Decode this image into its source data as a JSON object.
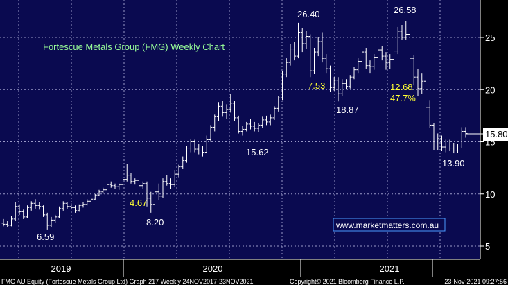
{
  "chart_data": {
    "type": "ohlc",
    "title": "Fortescue Metals Group (FMG) Weekly Chart",
    "watermark": "www.marketmatters.com.au",
    "last_price": "15.80",
    "ylim": [
      5,
      28
    ],
    "y_ticks": [
      "5",
      "10",
      "15",
      "20",
      "25"
    ],
    "x_periods": [
      "2019",
      "2020",
      "2021"
    ],
    "colors": {
      "background": "#0a0a50",
      "grid": "#9a9ac8",
      "bars": "#ffffff",
      "title": "#99ff99",
      "yellow": "#ffff33",
      "watermark_border": "#4a9aff",
      "last_price_box": "#ffffff"
    },
    "annotations": [
      {
        "text": "6.59",
        "color": "white"
      },
      {
        "text": "4.67",
        "color": "yellow"
      },
      {
        "text": "8.20",
        "color": "white"
      },
      {
        "text": "15.62",
        "color": "white"
      },
      {
        "text": "26.40",
        "color": "white"
      },
      {
        "text": "7.53",
        "color": "yellow"
      },
      {
        "text": "18.87",
        "color": "white"
      },
      {
        "text": "26.58",
        "color": "white"
      },
      {
        "text": "12.68",
        "color": "yellow"
      },
      {
        "text": "47.7%",
        "color": "yellow"
      },
      {
        "text": "13.90",
        "color": "white"
      }
    ],
    "footer_left": "FMG AU Equity (Fortescue Metals Group Ltd) Graph 217  Weekly 24NOV2017-23NOV2021",
    "footer_center": "Copyright© 2021 Bloomberg Finance L.P.",
    "footer_right": "23-Nov-2021 09:27:56",
    "series": [
      {
        "o": 7.2,
        "h": 7.6,
        "l": 6.9,
        "c": 7.1
      },
      {
        "o": 7.1,
        "h": 7.4,
        "l": 6.8,
        "c": 7.0
      },
      {
        "o": 7.0,
        "h": 7.9,
        "l": 6.9,
        "c": 7.6
      },
      {
        "o": 7.6,
        "h": 9.2,
        "l": 7.4,
        "c": 8.8
      },
      {
        "o": 8.8,
        "h": 9.0,
        "l": 8.0,
        "c": 8.3
      },
      {
        "o": 8.3,
        "h": 8.5,
        "l": 7.6,
        "c": 7.8
      },
      {
        "o": 7.8,
        "h": 8.9,
        "l": 7.7,
        "c": 8.7
      },
      {
        "o": 8.7,
        "h": 9.3,
        "l": 8.4,
        "c": 9.1
      },
      {
        "o": 9.1,
        "h": 9.5,
        "l": 8.6,
        "c": 8.9
      },
      {
        "o": 8.9,
        "h": 9.2,
        "l": 8.5,
        "c": 8.8
      },
      {
        "o": 8.8,
        "h": 8.9,
        "l": 7.8,
        "c": 8.0
      },
      {
        "o": 8.0,
        "h": 8.2,
        "l": 6.6,
        "c": 7.0
      },
      {
        "o": 7.0,
        "h": 7.8,
        "l": 6.8,
        "c": 7.5
      },
      {
        "o": 7.5,
        "h": 8.0,
        "l": 7.2,
        "c": 7.8
      },
      {
        "o": 7.8,
        "h": 8.8,
        "l": 7.7,
        "c": 8.6
      },
      {
        "o": 8.6,
        "h": 9.3,
        "l": 8.4,
        "c": 9.1
      },
      {
        "o": 9.1,
        "h": 9.2,
        "l": 8.6,
        "c": 8.8
      },
      {
        "o": 8.8,
        "h": 9.1,
        "l": 8.5,
        "c": 8.7
      },
      {
        "o": 8.7,
        "h": 8.9,
        "l": 8.2,
        "c": 8.4
      },
      {
        "o": 8.4,
        "h": 9.0,
        "l": 8.3,
        "c": 8.9
      },
      {
        "o": 8.9,
        "h": 9.2,
        "l": 8.7,
        "c": 9.0
      },
      {
        "o": 9.0,
        "h": 9.5,
        "l": 8.9,
        "c": 9.3
      },
      {
        "o": 9.3,
        "h": 9.7,
        "l": 9.0,
        "c": 9.5
      },
      {
        "o": 9.5,
        "h": 10.0,
        "l": 9.4,
        "c": 9.9
      },
      {
        "o": 9.9,
        "h": 10.4,
        "l": 9.8,
        "c": 10.2
      },
      {
        "o": 10.2,
        "h": 10.6,
        "l": 10.0,
        "c": 10.4
      },
      {
        "o": 10.4,
        "h": 11.0,
        "l": 10.3,
        "c": 10.9
      },
      {
        "o": 10.9,
        "h": 11.2,
        "l": 10.6,
        "c": 10.8
      },
      {
        "o": 10.8,
        "h": 11.0,
        "l": 10.5,
        "c": 10.7
      },
      {
        "o": 10.7,
        "h": 11.0,
        "l": 10.4,
        "c": 10.9
      },
      {
        "o": 10.9,
        "h": 11.6,
        "l": 10.8,
        "c": 11.4
      },
      {
        "o": 11.4,
        "h": 12.9,
        "l": 11.2,
        "c": 11.8
      },
      {
        "o": 11.8,
        "h": 12.0,
        "l": 11.0,
        "c": 11.2
      },
      {
        "o": 11.2,
        "h": 11.5,
        "l": 10.9,
        "c": 11.3
      },
      {
        "o": 11.3,
        "h": 11.6,
        "l": 10.6,
        "c": 10.8
      },
      {
        "o": 10.8,
        "h": 11.2,
        "l": 10.5,
        "c": 11.0
      },
      {
        "o": 11.0,
        "h": 11.2,
        "l": 8.8,
        "c": 9.6
      },
      {
        "o": 9.6,
        "h": 10.2,
        "l": 8.2,
        "c": 9.0
      },
      {
        "o": 9.0,
        "h": 10.6,
        "l": 8.8,
        "c": 10.2
      },
      {
        "o": 10.2,
        "h": 11.0,
        "l": 9.4,
        "c": 9.8
      },
      {
        "o": 9.8,
        "h": 11.5,
        "l": 9.6,
        "c": 11.2
      },
      {
        "o": 11.2,
        "h": 11.8,
        "l": 10.8,
        "c": 11.0
      },
      {
        "o": 11.0,
        "h": 11.5,
        "l": 10.5,
        "c": 10.9
      },
      {
        "o": 10.9,
        "h": 12.3,
        "l": 10.7,
        "c": 11.9
      },
      {
        "o": 11.9,
        "h": 12.8,
        "l": 11.6,
        "c": 12.6
      },
      {
        "o": 12.6,
        "h": 13.6,
        "l": 12.4,
        "c": 13.2
      },
      {
        "o": 13.2,
        "h": 14.6,
        "l": 13.0,
        "c": 14.4
      },
      {
        "o": 14.4,
        "h": 15.3,
        "l": 14.0,
        "c": 15.0
      },
      {
        "o": 15.0,
        "h": 15.2,
        "l": 14.0,
        "c": 14.3
      },
      {
        "o": 14.3,
        "h": 14.8,
        "l": 13.8,
        "c": 14.2
      },
      {
        "o": 14.2,
        "h": 14.6,
        "l": 13.6,
        "c": 14.0
      },
      {
        "o": 14.0,
        "h": 15.6,
        "l": 13.9,
        "c": 15.2
      },
      {
        "o": 15.2,
        "h": 16.6,
        "l": 15.0,
        "c": 16.4
      },
      {
        "o": 16.4,
        "h": 17.6,
        "l": 16.0,
        "c": 17.4
      },
      {
        "o": 17.4,
        "h": 18.8,
        "l": 17.0,
        "c": 18.4
      },
      {
        "o": 18.4,
        "h": 18.9,
        "l": 17.4,
        "c": 17.8
      },
      {
        "o": 17.8,
        "h": 18.6,
        "l": 17.2,
        "c": 18.1
      },
      {
        "o": 18.1,
        "h": 19.6,
        "l": 17.8,
        "c": 18.7
      },
      {
        "o": 18.7,
        "h": 18.9,
        "l": 17.0,
        "c": 17.3
      },
      {
        "o": 17.3,
        "h": 17.5,
        "l": 15.8,
        "c": 16.0
      },
      {
        "o": 16.0,
        "h": 16.5,
        "l": 15.6,
        "c": 16.2
      },
      {
        "o": 16.2,
        "h": 16.9,
        "l": 16.0,
        "c": 16.7
      },
      {
        "o": 16.7,
        "h": 17.2,
        "l": 16.2,
        "c": 16.5
      },
      {
        "o": 16.5,
        "h": 16.9,
        "l": 16.0,
        "c": 16.3
      },
      {
        "o": 16.3,
        "h": 16.8,
        "l": 15.9,
        "c": 16.6
      },
      {
        "o": 16.6,
        "h": 17.4,
        "l": 16.3,
        "c": 17.1
      },
      {
        "o": 17.1,
        "h": 17.5,
        "l": 16.6,
        "c": 16.9
      },
      {
        "o": 16.9,
        "h": 17.6,
        "l": 16.6,
        "c": 17.3
      },
      {
        "o": 17.3,
        "h": 18.4,
        "l": 17.1,
        "c": 18.2
      },
      {
        "o": 18.2,
        "h": 19.4,
        "l": 17.9,
        "c": 19.2
      },
      {
        "o": 19.2,
        "h": 21.8,
        "l": 19.0,
        "c": 21.5
      },
      {
        "o": 21.5,
        "h": 23.0,
        "l": 21.2,
        "c": 22.6
      },
      {
        "o": 22.6,
        "h": 24.4,
        "l": 22.3,
        "c": 23.9
      },
      {
        "o": 23.9,
        "h": 24.6,
        "l": 22.8,
        "c": 23.2
      },
      {
        "o": 23.2,
        "h": 26.4,
        "l": 23.0,
        "c": 25.5
      },
      {
        "o": 25.5,
        "h": 25.9,
        "l": 23.6,
        "c": 24.4
      },
      {
        "o": 24.4,
        "h": 25.6,
        "l": 23.9,
        "c": 25.1
      },
      {
        "o": 25.1,
        "h": 25.3,
        "l": 21.2,
        "c": 21.8
      },
      {
        "o": 21.8,
        "h": 24.0,
        "l": 21.5,
        "c": 23.6
      },
      {
        "o": 23.6,
        "h": 25.0,
        "l": 23.2,
        "c": 24.6
      },
      {
        "o": 24.6,
        "h": 25.5,
        "l": 22.6,
        "c": 23.0
      },
      {
        "o": 23.0,
        "h": 23.4,
        "l": 21.6,
        "c": 22.0
      },
      {
        "o": 22.0,
        "h": 22.3,
        "l": 19.8,
        "c": 20.2
      },
      {
        "o": 20.2,
        "h": 21.2,
        "l": 19.9,
        "c": 20.9
      },
      {
        "o": 20.9,
        "h": 21.2,
        "l": 18.87,
        "c": 19.6
      },
      {
        "o": 19.6,
        "h": 21.0,
        "l": 19.4,
        "c": 20.6
      },
      {
        "o": 20.6,
        "h": 21.0,
        "l": 20.0,
        "c": 20.3
      },
      {
        "o": 20.3,
        "h": 21.4,
        "l": 20.1,
        "c": 21.2
      },
      {
        "o": 21.2,
        "h": 22.2,
        "l": 21.0,
        "c": 21.9
      },
      {
        "o": 21.9,
        "h": 23.0,
        "l": 21.6,
        "c": 22.7
      },
      {
        "o": 22.7,
        "h": 24.9,
        "l": 22.3,
        "c": 23.6
      },
      {
        "o": 23.6,
        "h": 24.0,
        "l": 22.0,
        "c": 22.3
      },
      {
        "o": 22.3,
        "h": 22.8,
        "l": 21.6,
        "c": 22.2
      },
      {
        "o": 22.2,
        "h": 23.4,
        "l": 21.9,
        "c": 23.1
      },
      {
        "o": 23.1,
        "h": 24.0,
        "l": 22.6,
        "c": 23.8
      },
      {
        "o": 23.8,
        "h": 24.2,
        "l": 22.8,
        "c": 23.2
      },
      {
        "o": 23.2,
        "h": 23.6,
        "l": 21.9,
        "c": 22.6
      },
      {
        "o": 22.6,
        "h": 23.4,
        "l": 22.0,
        "c": 22.9
      },
      {
        "o": 22.9,
        "h": 24.0,
        "l": 22.6,
        "c": 23.7
      },
      {
        "o": 23.7,
        "h": 26.0,
        "l": 23.4,
        "c": 25.6
      },
      {
        "o": 25.6,
        "h": 26.2,
        "l": 24.8,
        "c": 25.0
      },
      {
        "o": 25.0,
        "h": 26.58,
        "l": 24.8,
        "c": 25.3
      },
      {
        "o": 25.3,
        "h": 25.5,
        "l": 22.6,
        "c": 23.0
      },
      {
        "o": 23.0,
        "h": 23.3,
        "l": 20.4,
        "c": 21.2
      },
      {
        "o": 21.2,
        "h": 22.0,
        "l": 19.4,
        "c": 20.1
      },
      {
        "o": 20.1,
        "h": 21.6,
        "l": 19.6,
        "c": 20.8
      },
      {
        "o": 20.8,
        "h": 21.0,
        "l": 18.0,
        "c": 18.3
      },
      {
        "o": 18.3,
        "h": 19.0,
        "l": 16.3,
        "c": 16.6
      },
      {
        "o": 16.6,
        "h": 16.8,
        "l": 14.2,
        "c": 14.6
      },
      {
        "o": 14.6,
        "h": 15.8,
        "l": 14.2,
        "c": 15.3
      },
      {
        "o": 15.3,
        "h": 15.6,
        "l": 14.1,
        "c": 14.5
      },
      {
        "o": 14.5,
        "h": 15.2,
        "l": 14.0,
        "c": 14.8
      },
      {
        "o": 14.8,
        "h": 15.2,
        "l": 14.1,
        "c": 14.4
      },
      {
        "o": 14.4,
        "h": 14.9,
        "l": 13.9,
        "c": 14.2
      },
      {
        "o": 14.2,
        "h": 14.8,
        "l": 13.9,
        "c": 14.6
      },
      {
        "o": 14.6,
        "h": 16.4,
        "l": 14.4,
        "c": 16.0
      },
      {
        "o": 16.0,
        "h": 16.4,
        "l": 15.4,
        "c": 15.8
      }
    ]
  }
}
